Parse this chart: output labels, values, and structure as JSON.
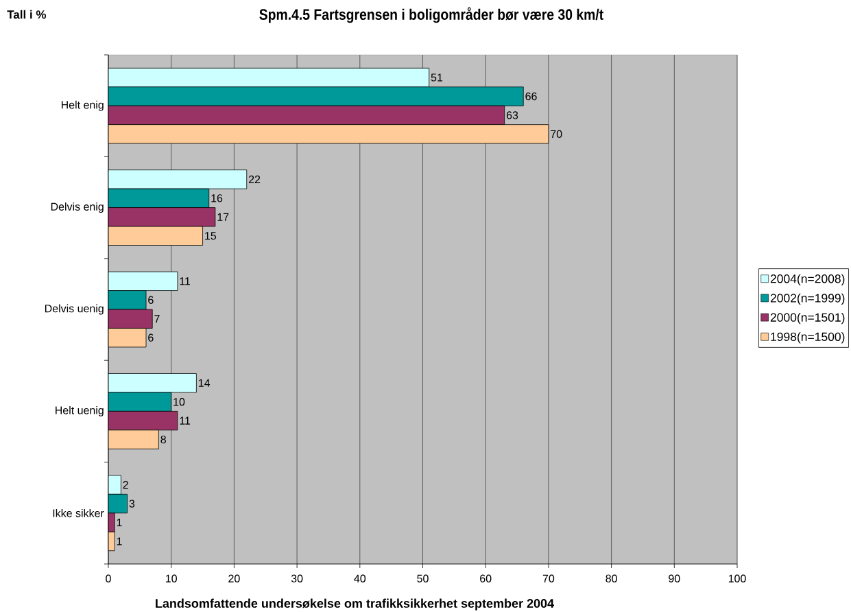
{
  "chart_data": {
    "type": "bar",
    "orientation": "horizontal",
    "title": "Spm.4.5 Fartsgrensen i boligområder bør være 30 km/t",
    "xlabel": "Landsomfattende undersøkelse om trafikksikkerhet september 2004",
    "annotations": [
      "Tall i %"
    ],
    "categories": [
      "Helt enig",
      "Delvis enig",
      "Delvis uenig",
      "Helt uenig",
      "Ikke sikker"
    ],
    "series": [
      {
        "name": "2004(n=2008)",
        "color": "#ccffff",
        "values": [
          51,
          22,
          11,
          14,
          2
        ]
      },
      {
        "name": "2002(n=1999)",
        "color": "#009999",
        "values": [
          66,
          16,
          6,
          10,
          3
        ]
      },
      {
        "name": "2000(n=1501)",
        "color": "#993366",
        "values": [
          63,
          17,
          7,
          11,
          1
        ]
      },
      {
        "name": "1998(n=1500)",
        "color": "#ffcc99",
        "values": [
          70,
          15,
          6,
          8,
          1
        ]
      }
    ],
    "xlim": [
      0,
      100
    ],
    "xticks": [
      0,
      10,
      20,
      30,
      40,
      50,
      60,
      70,
      80,
      90,
      100
    ],
    "grid": "x",
    "legend": "right",
    "data_labels": true
  }
}
